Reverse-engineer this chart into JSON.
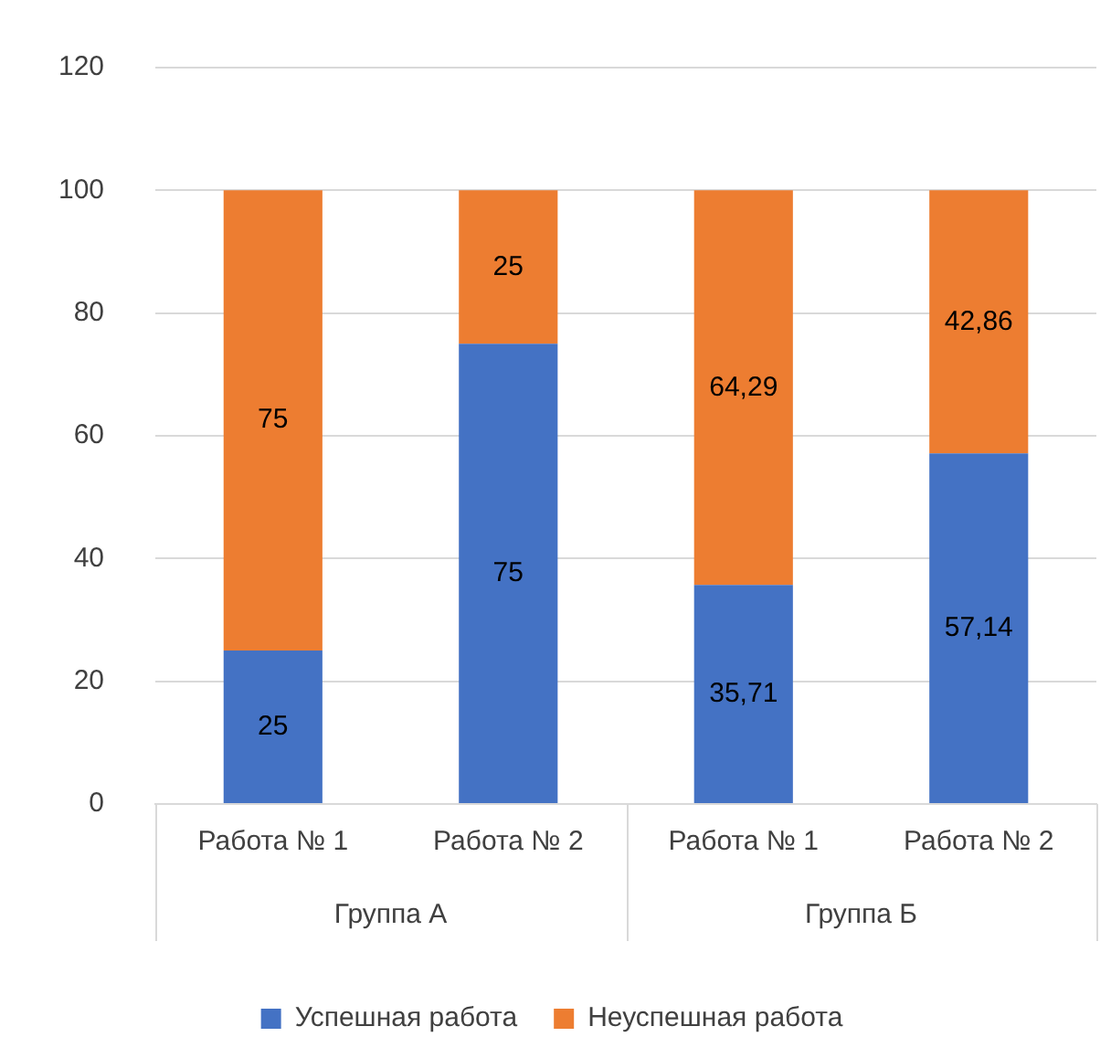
{
  "chart_data": {
    "type": "bar",
    "stacked": true,
    "categories": [
      "Работа № 1",
      "Работа № 2",
      "Работа № 1",
      "Работа № 2"
    ],
    "series": [
      {
        "name": "Успешная работа",
        "color": "#4472c4",
        "values": [
          25,
          75,
          35.71,
          57.14
        ],
        "value_labels": [
          "25",
          "75",
          "35,71",
          "57,14"
        ]
      },
      {
        "name": "Неуспешная работа",
        "color": "#ed7d31",
        "values": [
          75,
          25,
          64.29,
          42.86
        ],
        "value_labels": [
          "75",
          "25",
          "64,29",
          "42,86"
        ]
      }
    ],
    "annotations": [
      "Группа А",
      "Группа Б"
    ],
    "ylim": [
      0,
      120
    ],
    "yticks": [
      0,
      20,
      40,
      60,
      80,
      100,
      120
    ],
    "grid": "y",
    "legend": "bottom"
  }
}
